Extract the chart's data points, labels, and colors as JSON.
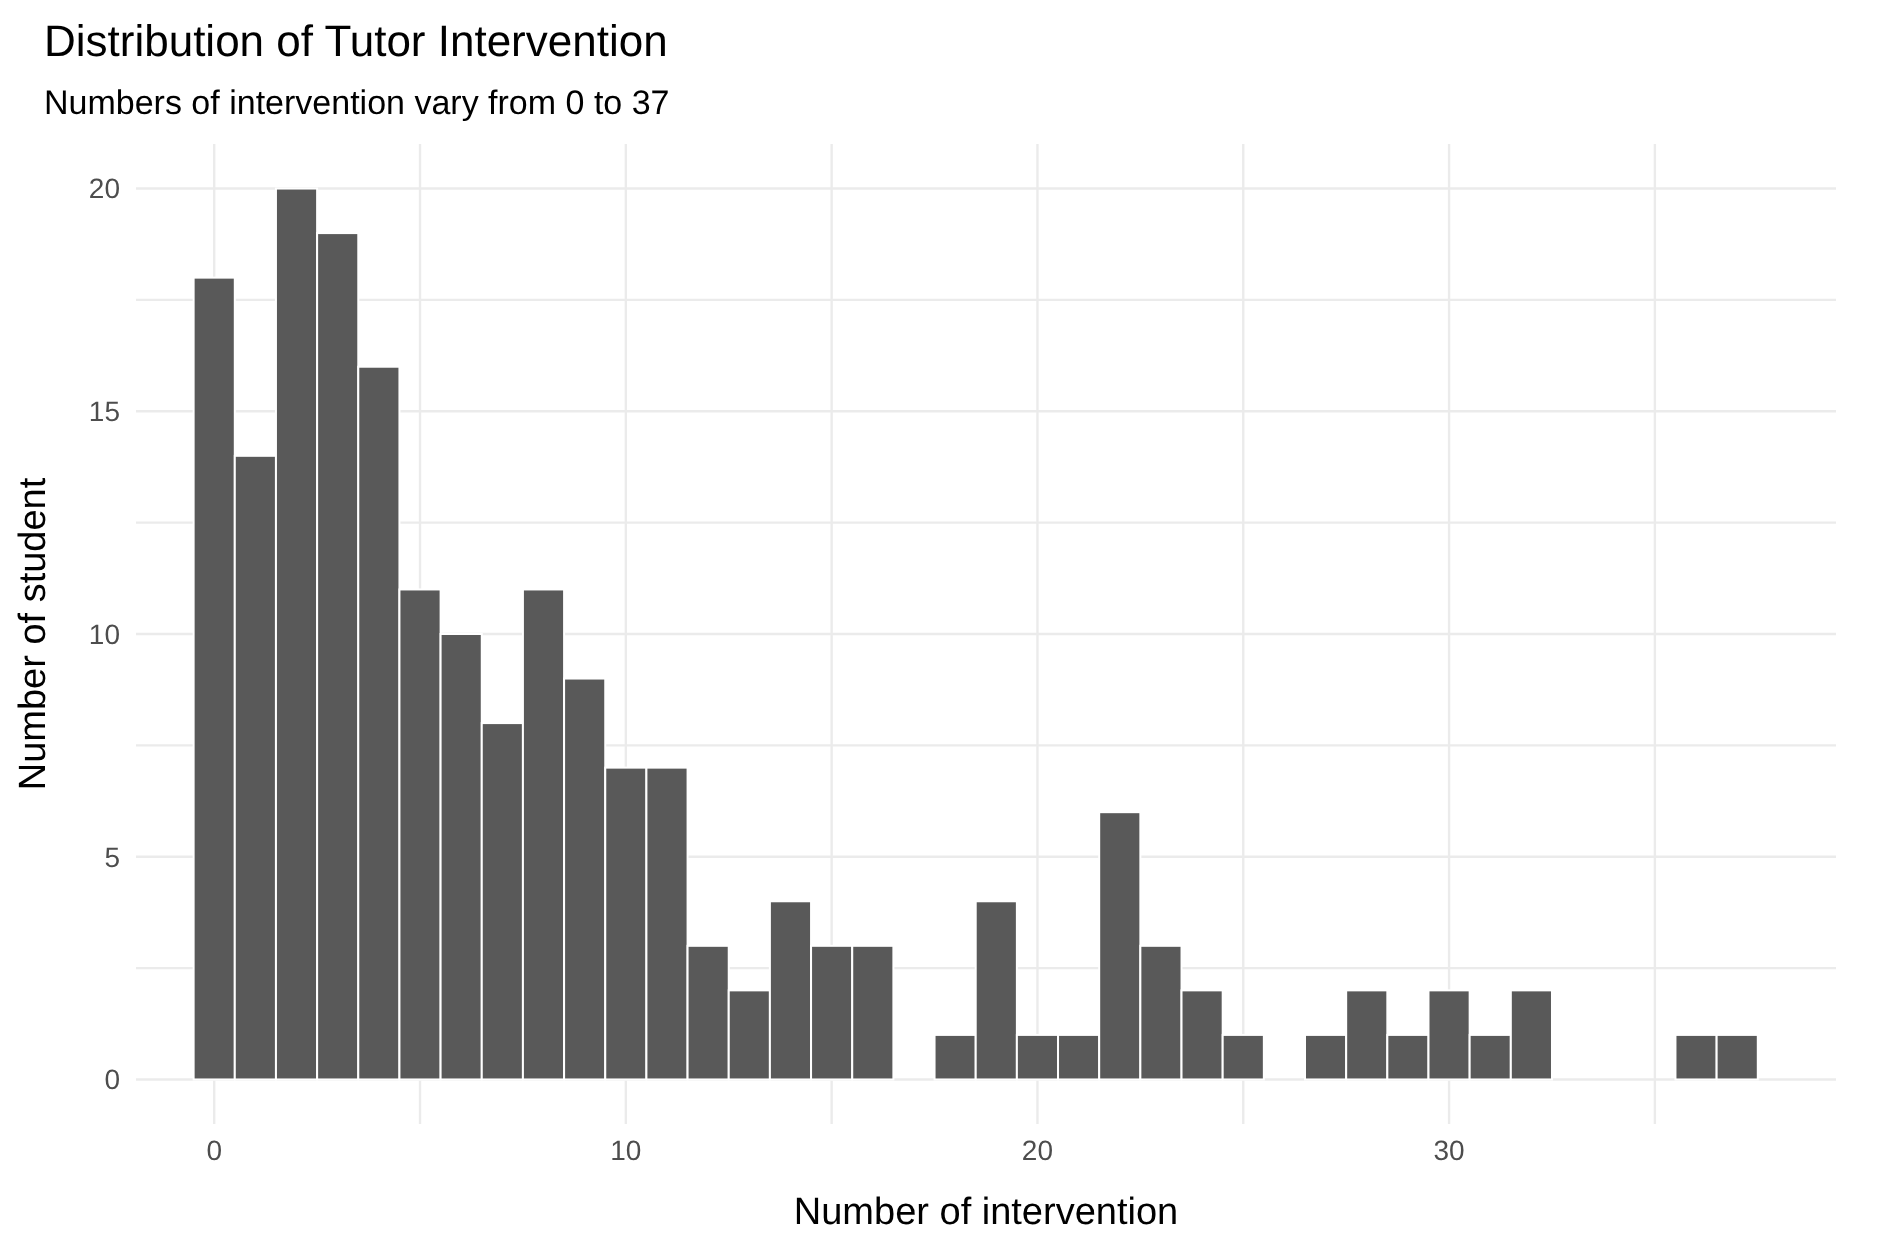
{
  "chart_data": {
    "type": "histogram",
    "title": "Distribution of Tutor Intervention",
    "subtitle": "Numbers of intervention vary from 0 to 37",
    "xlabel": "Number of intervention",
    "ylabel": "Number of student",
    "bins": [
      -0.5,
      0.5,
      1.5,
      2.5,
      3.5,
      4.5,
      5.5,
      6.5,
      7.5,
      8.5,
      9.5,
      10.5,
      11.5,
      12.5,
      13.5,
      14.5,
      15.5,
      16.5,
      17.5,
      18.5,
      19.5,
      20.5,
      21.5,
      22.5,
      23.5,
      24.5,
      25.5,
      26.5,
      27.5,
      28.5,
      29.5,
      30.5,
      31.5,
      32.5,
      33.5,
      34.5,
      35.5,
      36.5,
      37.5
    ],
    "values": [
      18,
      14,
      20,
      19,
      16,
      11,
      10,
      8,
      11,
      9,
      7,
      7,
      3,
      2,
      4,
      3,
      3,
      0,
      1,
      4,
      1,
      1,
      6,
      3,
      2,
      1,
      0,
      1,
      2,
      1,
      2,
      1,
      2,
      0,
      0,
      0,
      1,
      1
    ],
    "color": "#595959",
    "xlim": [
      -1.9,
      39.4
    ],
    "xticks": [
      0,
      {
        "value": 5,
        "label": null
      },
      10,
      {
        "value": 15,
        "label": null
      },
      20,
      {
        "value": 25,
        "label": null
      },
      30,
      {
        "value": 35,
        "label": null
      }
    ],
    "ylim": [
      -1,
      21
    ],
    "yticks": [
      0,
      {
        "value": 2.5,
        "label": null
      },
      5,
      {
        "value": 7.5,
        "label": null
      },
      10,
      {
        "value": 12.5,
        "label": null
      },
      15,
      {
        "value": 17.5,
        "label": null
      },
      20
    ],
    "grid": true
  }
}
